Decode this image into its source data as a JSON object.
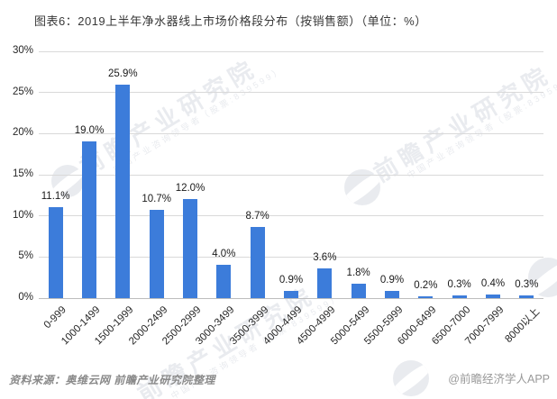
{
  "title": "图表6：2019上半年净水器线上市场价格段分布（按销售额）（单位：%）",
  "chart_data": {
    "type": "bar",
    "title": "2019上半年净水器线上市场价格段分布（按销售额）",
    "unit": "%",
    "categories": [
      "0-999",
      "1000-1499",
      "1500-1999",
      "2000-2499",
      "2500-2999",
      "3000-3499",
      "3500-3999",
      "4000-4499",
      "4500-4999",
      "5000-5499",
      "5500-5999",
      "6000-6499",
      "6500-7000",
      "7000-7999",
      "8000以上"
    ],
    "values": [
      11.1,
      19.0,
      25.9,
      10.7,
      12.0,
      4.0,
      8.7,
      0.9,
      3.6,
      1.8,
      0.9,
      0.2,
      0.3,
      0.4,
      0.3
    ],
    "data_labels": [
      "11.1%",
      "19.0%",
      "25.9%",
      "10.7%",
      "12.0%",
      "4.0%",
      "8.7%",
      "0.9%",
      "3.6%",
      "1.8%",
      "0.9%",
      "0.2%",
      "0.3%",
      "0.4%",
      "0.3%"
    ],
    "xlabel": "",
    "ylabel": "",
    "ylim": [
      0,
      30
    ],
    "ytick_step": 5,
    "ytick_labels": [
      "0%",
      "5%",
      "10%",
      "15%",
      "20%",
      "25%",
      "30%"
    ],
    "grid": true,
    "legend": false,
    "bar_color": "#3C7CDA"
  },
  "footer": {
    "source": "资料来源：奥维云网 前瞻产业研究院整理",
    "credit": "@前瞻经济学人APP"
  },
  "watermark": {
    "brand": "前瞻产业研究院",
    "tagline": "中国产业咨询领导者（股票:839599）",
    "logo": "qianzhan-logo-circle"
  }
}
